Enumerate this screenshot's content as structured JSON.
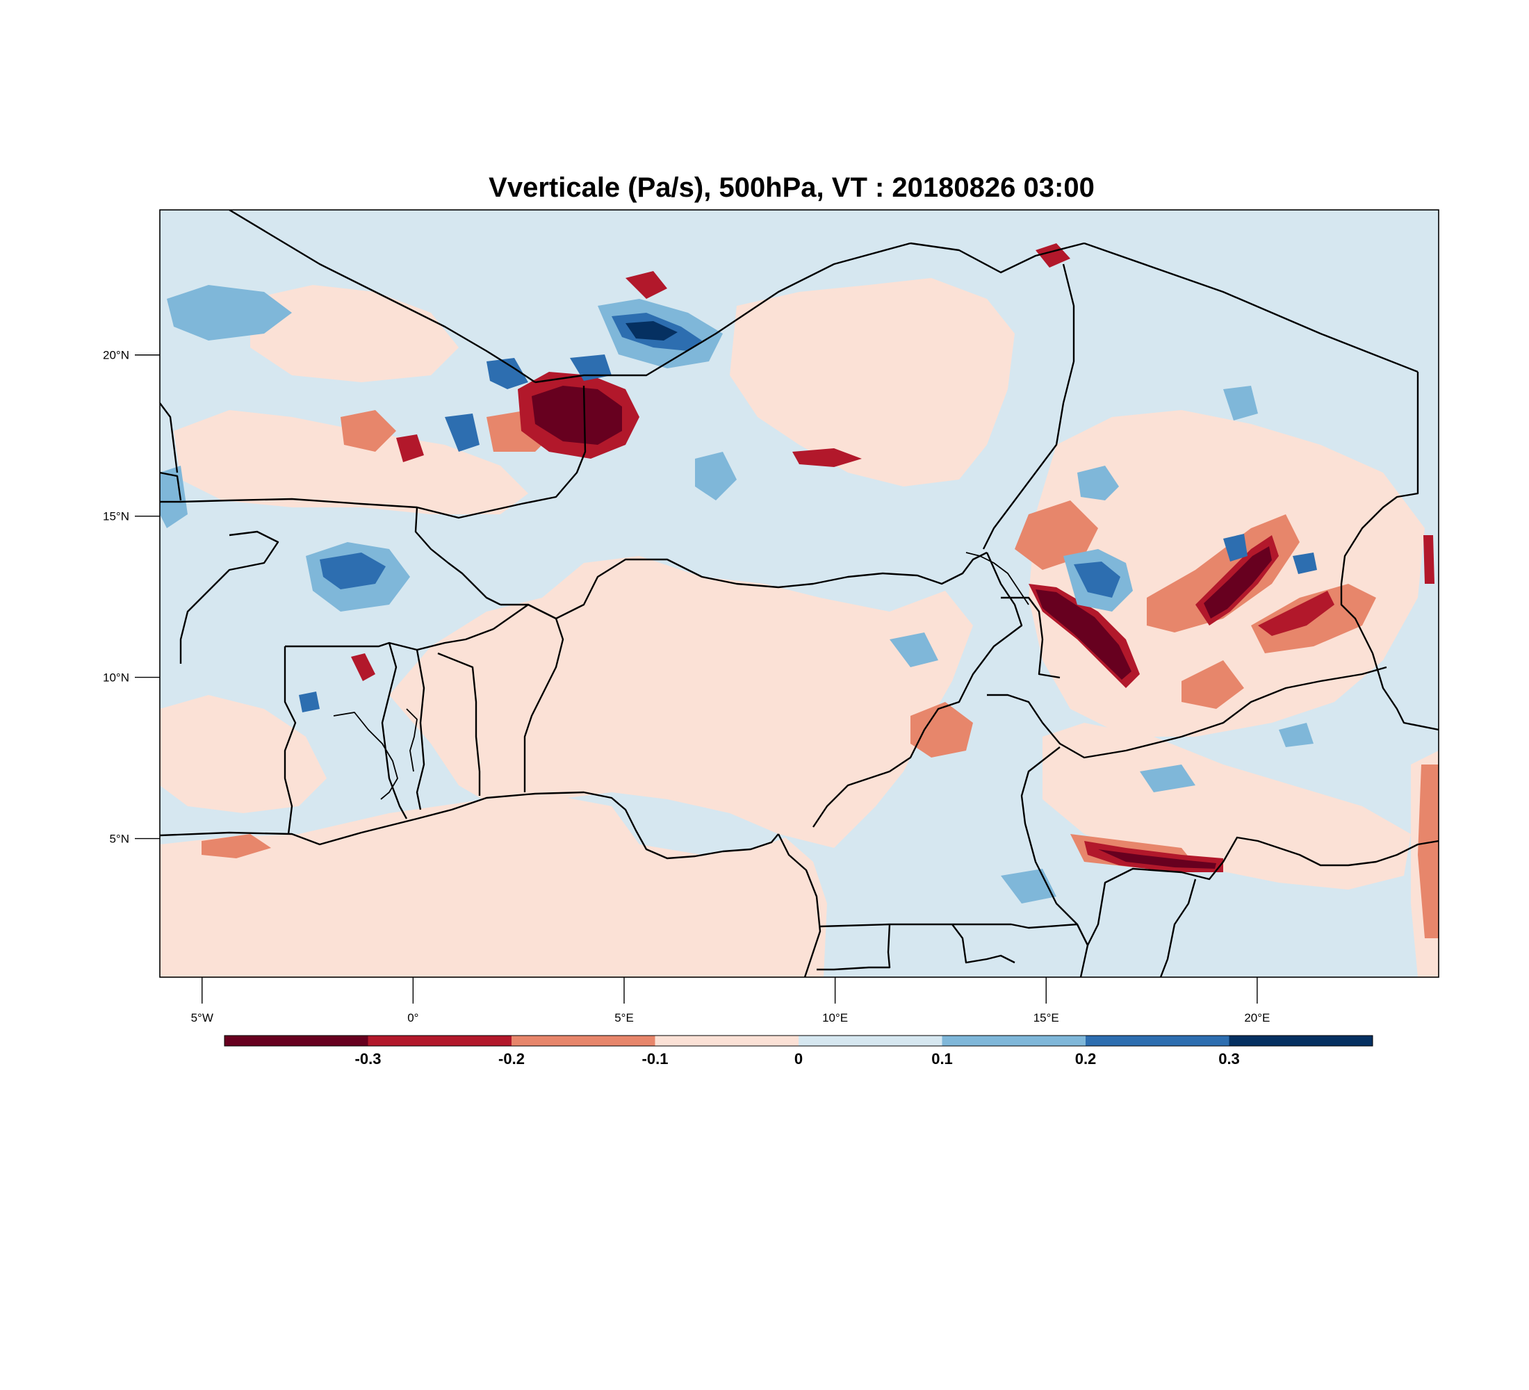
{
  "title": "Vverticale (Pa/s), 500hPa, VT : 20180826  03:00",
  "map": {
    "lon_range": [
      -6,
      24.3
    ],
    "lat_range": [
      0.7,
      24.5
    ],
    "lon_ticks": [
      {
        "value": -5,
        "label": "5°W"
      },
      {
        "value": 0,
        "label": "0°"
      },
      {
        "value": 5,
        "label": "5°E"
      },
      {
        "value": 10,
        "label": "10°E"
      },
      {
        "value": 15,
        "label": "15°E"
      },
      {
        "value": 20,
        "label": "20°E"
      }
    ],
    "lat_ticks": [
      {
        "value": 5,
        "label": "5°N"
      },
      {
        "value": 10,
        "label": "10°N"
      },
      {
        "value": 15,
        "label": "15°N"
      },
      {
        "value": 20,
        "label": "20°N"
      }
    ]
  },
  "colorbar": {
    "labels": [
      "-0.3",
      "-0.2",
      "-0.1",
      "0",
      "0.1",
      "0.2",
      "0.3"
    ],
    "colors": [
      "#67001f",
      "#b2182b",
      "#e7866b",
      "#fbe1d6",
      "#d6e7f0",
      "#7fb7d9",
      "#2d6eb0",
      "#053061"
    ]
  }
}
